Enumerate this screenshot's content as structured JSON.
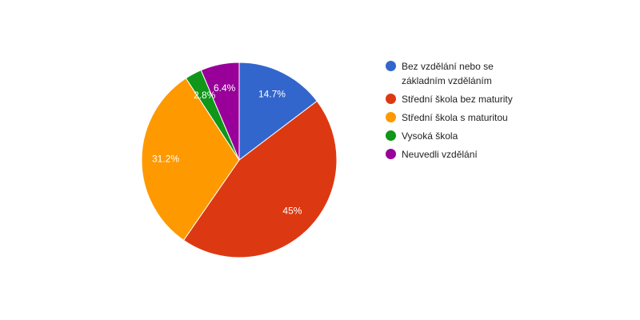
{
  "chart_data": {
    "type": "pie",
    "categories": [
      "Bez vzdělání nebo se základním vzděláním",
      "Střední škola bez maturity",
      "Střední škola s maturitou",
      "Vysoká škola",
      "Neuvedli vzdělání"
    ],
    "values": [
      14.7,
      45,
      31.2,
      2.8,
      6.4
    ],
    "labels": [
      "14.7%",
      "45%",
      "31.2%",
      "2.8%",
      "6.4%"
    ],
    "colors": [
      "#3366cc",
      "#dc3912",
      "#ff9900",
      "#109618",
      "#990099"
    ],
    "start_angle": "12 o'clock",
    "direction": "clockwise",
    "legend_position": "right"
  }
}
